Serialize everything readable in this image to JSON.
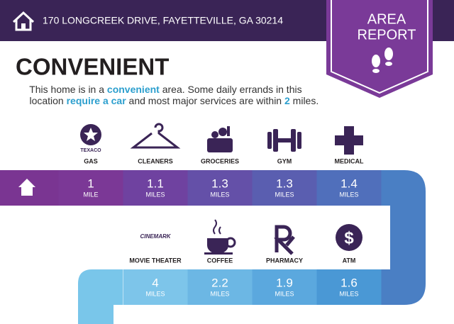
{
  "header": {
    "address": "170 LONGCREEK DRIVE, FAYETTEVILLE, GA 30214"
  },
  "badge": {
    "lines": [
      "AREA",
      "REPORT"
    ]
  },
  "title": "CONVENIENT",
  "description": {
    "line1": [
      "This home is in a ",
      "convenient",
      " area. Some daily errands in this"
    ],
    "line2": [
      "location ",
      "require a car",
      " and most major services are within ",
      "2",
      " miles."
    ]
  },
  "icon_texts": {
    "gas": "TEXACO",
    "movie": "CINEMARK"
  },
  "rows": [
    {
      "items": [
        {
          "label": "GAS",
          "distance": 1,
          "unit": "MILE"
        },
        {
          "label": "CLEANERS",
          "distance": 1.1,
          "unit": "MILES"
        },
        {
          "label": "GROCERIES",
          "distance": 1.3,
          "unit": "MILES"
        },
        {
          "label": "GYM",
          "distance": 1.3,
          "unit": "MILES"
        },
        {
          "label": "MEDICAL",
          "distance": 1.4,
          "unit": "MILES"
        }
      ]
    },
    {
      "items": [
        {
          "label": "MOVIE THEATER",
          "distance": 4,
          "unit": "MILES"
        },
        {
          "label": "COFFEE",
          "distance": 2.2,
          "unit": "MILES"
        },
        {
          "label": "PHARMACY",
          "distance": 1.9,
          "unit": "MILES"
        },
        {
          "label": "ATM",
          "distance": 1.6,
          "unit": "MILES"
        }
      ]
    }
  ]
}
